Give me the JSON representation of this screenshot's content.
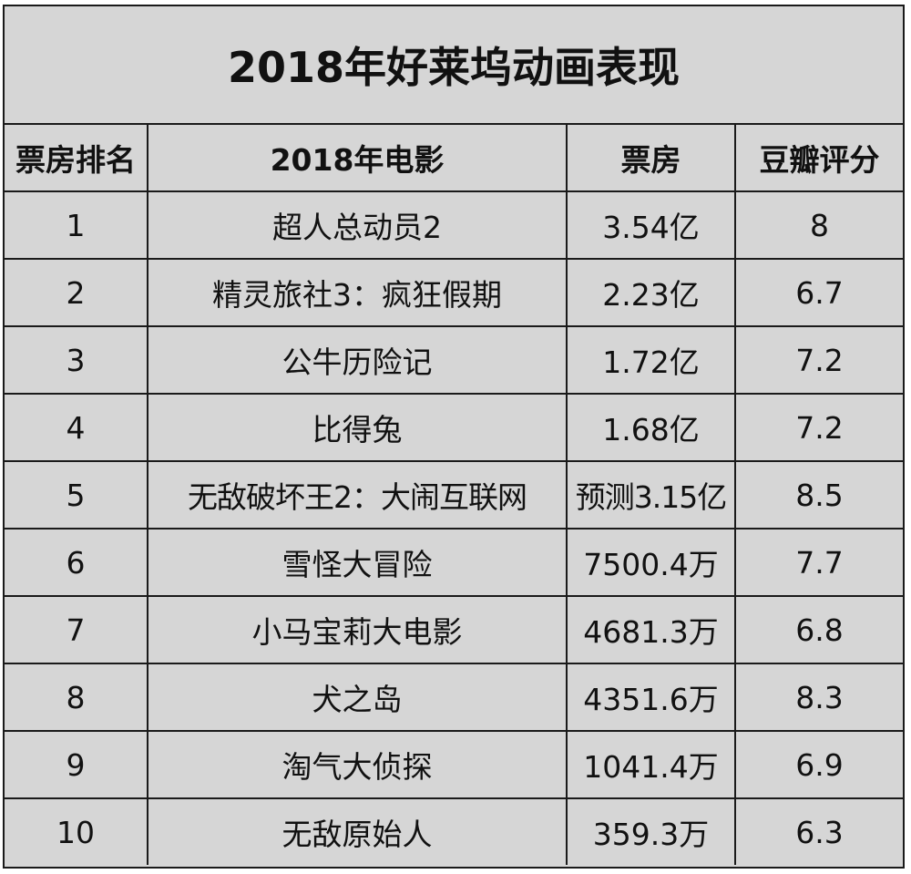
{
  "title": "2018年好莱坞动画表现",
  "headers": {
    "rank": "票房排名",
    "movie": "2018年电影",
    "box_office": "票房",
    "douban": "豆瓣评分"
  },
  "rows": [
    {
      "rank": "1",
      "movie": "超人总动员2",
      "box_office": "3.54亿",
      "douban": "8"
    },
    {
      "rank": "2",
      "movie": "精灵旅社3：疯狂假期",
      "box_office": "2.23亿",
      "douban": "6.7"
    },
    {
      "rank": "3",
      "movie": "公牛历险记",
      "box_office": "1.72亿",
      "douban": "7.2"
    },
    {
      "rank": "4",
      "movie": "比得兔",
      "box_office": "1.68亿",
      "douban": "7.2"
    },
    {
      "rank": "5",
      "movie": "无敌破坏王2：大闹互联网",
      "box_office": "预测3.15亿",
      "douban": "8.5"
    },
    {
      "rank": "6",
      "movie": "雪怪大冒险",
      "box_office": "7500.4万",
      "douban": "7.7"
    },
    {
      "rank": "7",
      "movie": "小马宝莉大电影",
      "box_office": "4681.3万",
      "douban": "6.8"
    },
    {
      "rank": "8",
      "movie": "犬之岛",
      "box_office": "4351.6万",
      "douban": "8.3"
    },
    {
      "rank": "9",
      "movie": "淘气大侦探",
      "box_office": "1041.4万",
      "douban": "6.9"
    },
    {
      "rank": "10",
      "movie": "无敌原始人",
      "box_office": "359.3万",
      "douban": "6.3"
    }
  ],
  "colors": {
    "background": "#d6d6d6",
    "border": "#1a1a1a",
    "text": "#111111"
  }
}
